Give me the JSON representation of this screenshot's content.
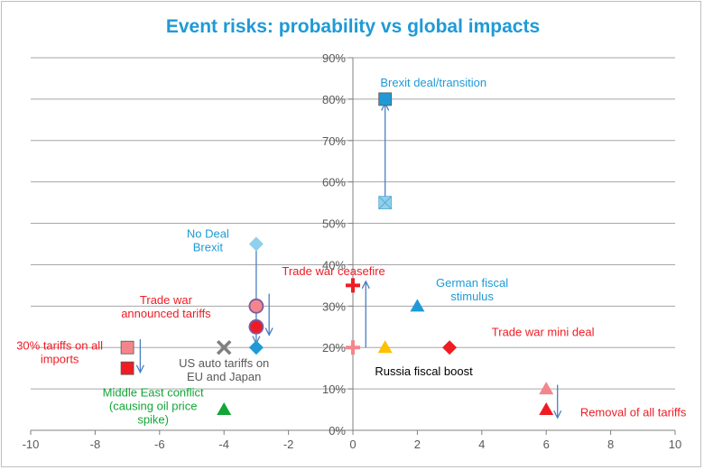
{
  "chart_data": {
    "type": "scatter",
    "title": "Event risks: probability vs global impacts",
    "xlabel": "",
    "ylabel": "",
    "xlim": [
      -10,
      10
    ],
    "ylim": [
      0,
      90
    ],
    "x_ticks": [
      -10,
      -8,
      -6,
      -4,
      -2,
      0,
      2,
      4,
      6,
      8,
      10
    ],
    "y_ticks": [
      "0%",
      "10%",
      "20%",
      "30%",
      "40%",
      "50%",
      "60%",
      "70%",
      "80%",
      "90%"
    ],
    "grid": "horizontal",
    "colors": {
      "blue": "#1f9ad6",
      "light_blue": "#8fd0ec",
      "red": "#ee1c24",
      "light_red": "#f4868b",
      "green": "#12a537",
      "yellow": "#ffc000",
      "gray": "#7f7f7f",
      "arrow": "#4a7fc1"
    },
    "points": [
      {
        "x": 1,
        "y": 80,
        "marker": "square",
        "color": "#1f9ad6"
      },
      {
        "x": 1,
        "y": 55,
        "marker": "square-x",
        "color": "#8fd0ec"
      },
      {
        "x": -3,
        "y": 45,
        "marker": "diamond",
        "color": "#8fd0ec"
      },
      {
        "x": -3,
        "y": 20,
        "marker": "diamond",
        "color": "#1f9ad6"
      },
      {
        "x": -3,
        "y": 30,
        "marker": "circle",
        "color": "#f4868b"
      },
      {
        "x": -3,
        "y": 25,
        "marker": "circle",
        "color": "#ee1c24"
      },
      {
        "x": 0,
        "y": 35,
        "marker": "plus",
        "color": "#ee1c24"
      },
      {
        "x": 0,
        "y": 20,
        "marker": "plus",
        "color": "#f4868b"
      },
      {
        "x": 2,
        "y": 30,
        "marker": "triangle",
        "color": "#1f9ad6"
      },
      {
        "x": 3,
        "y": 20,
        "marker": "diamond",
        "color": "#ee1c24"
      },
      {
        "x": 1,
        "y": 20,
        "marker": "triangle",
        "color": "#ffc000"
      },
      {
        "x": -7,
        "y": 20,
        "marker": "square",
        "color": "#f4868b"
      },
      {
        "x": -7,
        "y": 15,
        "marker": "square",
        "color": "#ee1c24"
      },
      {
        "x": -4,
        "y": 20,
        "marker": "x",
        "color": "#7f7f7f"
      },
      {
        "x": -4,
        "y": 5,
        "marker": "triangle",
        "color": "#12a537"
      },
      {
        "x": 6,
        "y": 10,
        "marker": "triangle",
        "color": "#f4868b"
      },
      {
        "x": 6,
        "y": 5,
        "marker": "triangle",
        "color": "#ee1c24"
      }
    ],
    "arrows": [
      {
        "from": [
          1,
          54
        ],
        "to": [
          1,
          79
        ]
      },
      {
        "from": [
          -3,
          44
        ],
        "to": [
          -3,
          21
        ]
      },
      {
        "from": [
          -2.6,
          33
        ],
        "to": [
          -2.6,
          23
        ]
      },
      {
        "from": [
          0.4,
          20
        ],
        "to": [
          0.4,
          36
        ]
      },
      {
        "from": [
          -6.6,
          22
        ],
        "to": [
          -6.6,
          14
        ]
      },
      {
        "from": [
          6.35,
          11
        ],
        "to": [
          6.35,
          3
        ]
      }
    ],
    "annotations": [
      {
        "lines": [
          "Brexit deal/transition"
        ],
        "x": 2.5,
        "y": 83,
        "color": "#1f9ad6",
        "anchor": "middle"
      },
      {
        "lines": [
          "No Deal",
          "Brexit"
        ],
        "x": -4.5,
        "y": 46.5,
        "color": "#1f9ad6",
        "anchor": "middle"
      },
      {
        "lines": [
          "Trade war ceasefire"
        ],
        "x": -0.6,
        "y": 37.5,
        "color": "#ee1c24",
        "anchor": "middle"
      },
      {
        "lines": [
          "German fiscal",
          "stimulus"
        ],
        "x": 3.7,
        "y": 34.7,
        "color": "#1f9ad6",
        "anchor": "middle"
      },
      {
        "lines": [
          "Trade war",
          "announced tariffs"
        ],
        "x": -5.8,
        "y": 30.5,
        "color": "#ee1c24",
        "anchor": "middle"
      },
      {
        "lines": [
          "Trade war mini deal"
        ],
        "x": 5.9,
        "y": 22.8,
        "color": "#ee1c24",
        "anchor": "middle"
      },
      {
        "lines": [
          "30% tariffs on all",
          "imports"
        ],
        "x": -9.1,
        "y": 19.5,
        "color": "#ee1c24",
        "anchor": "middle"
      },
      {
        "lines": [
          "US auto tariffs on",
          "EU and Japan"
        ],
        "x": -4,
        "y": 15.3,
        "color": "#595959",
        "anchor": "middle"
      },
      {
        "lines": [
          "Russia fiscal boost"
        ],
        "x": 2.2,
        "y": 13.3,
        "color": "#000000",
        "anchor": "middle"
      },
      {
        "lines": [
          "Middle East conflict",
          "(causing oil price",
          "spike)"
        ],
        "x": -6.2,
        "y": 8.2,
        "color": "#12a537",
        "anchor": "middle"
      },
      {
        "lines": [
          "Removal of all tariffs"
        ],
        "x": 8.7,
        "y": 3.4,
        "color": "#ee1c24",
        "anchor": "middle"
      }
    ]
  }
}
